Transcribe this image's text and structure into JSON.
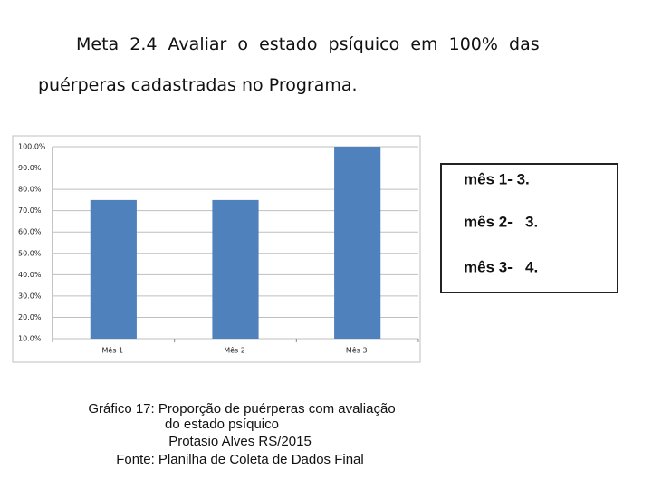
{
  "chart_data": {
    "type": "bar",
    "title_lines": [
      "Meta  2.4  Avaliar  o  estado  psíquico  em  100%  das",
      "puérperas cadastradas no Programa."
    ],
    "categories": [
      "Mês 1",
      "Mês 2",
      "Mês 3"
    ],
    "values": [
      75,
      75,
      100
    ],
    "color": "#4f81bd",
    "ylim": [
      10,
      100
    ],
    "yticks": [
      {
        "value": 10,
        "label": "10.0%"
      },
      {
        "value": 20,
        "label": "20.0%"
      },
      {
        "value": 30,
        "label": "30.0%"
      },
      {
        "value": 40,
        "label": "40.0%"
      },
      {
        "value": 50,
        "label": "50.0%"
      },
      {
        "value": 60,
        "label": "60.0%"
      },
      {
        "value": 70,
        "label": "70.0%"
      },
      {
        "value": 80,
        "label": "80.0%"
      },
      {
        "value": 90,
        "label": "90.0%"
      },
      {
        "value": 100,
        "label": "100.0%"
      }
    ],
    "grid": true,
    "annotations": [
      "mês 1- 3.",
      "mês 2-   3.",
      "mês 3-   4."
    ],
    "caption": [
      "Gráfico 17: Proporção de puérperas com avaliação",
      "do estado psíquico",
      "Protasio Alves RS/2015",
      "Fonte: Planilha de Coleta de Dados Final"
    ]
  }
}
